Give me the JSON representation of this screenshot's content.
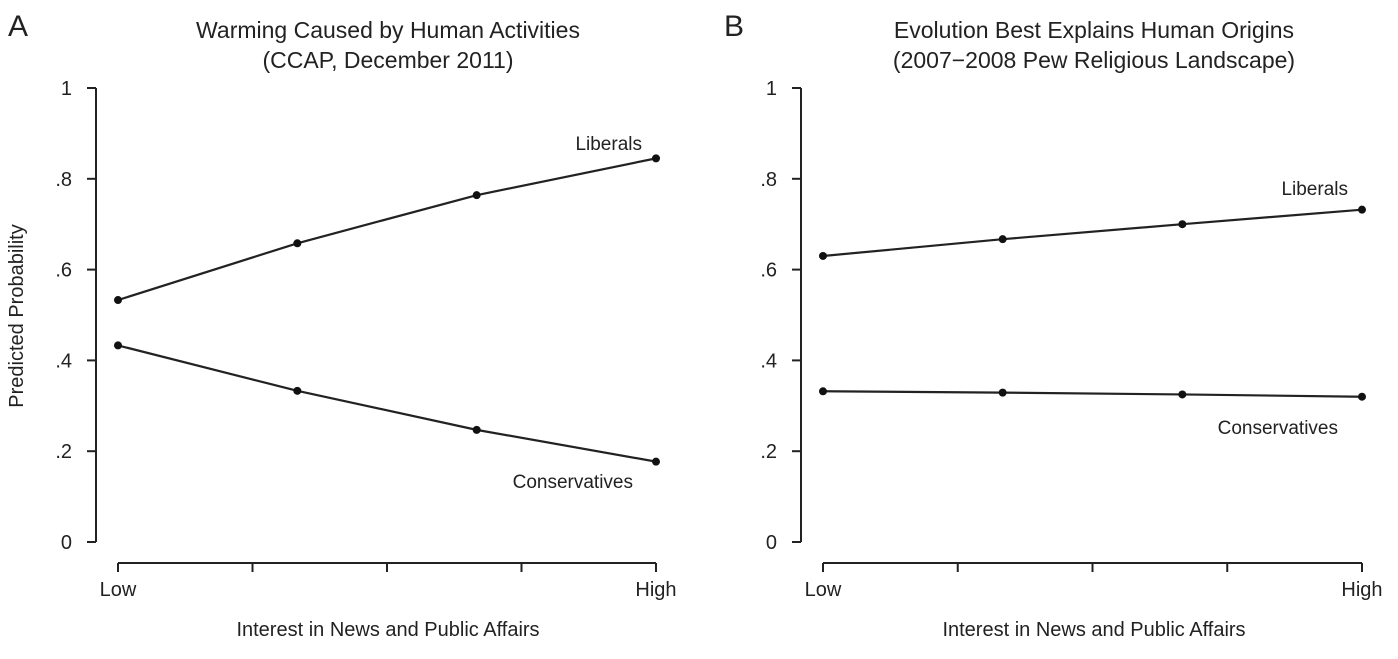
{
  "chart_data": [
    {
      "type": "line",
      "panel": "A",
      "title": "Warming Caused by Human Activities",
      "subtitle": "(CCAP, December 2011)",
      "xlabel": "Interest in News and Public Affairs",
      "ylabel": "Predicted Probability",
      "x_ticks": [
        "Low",
        "",
        "",
        "",
        "High"
      ],
      "x": [
        0,
        1,
        2,
        3
      ],
      "ylim": [
        0,
        1
      ],
      "y_ticks": [
        {
          "value": 0,
          "label": "0"
        },
        {
          "value": 0.2,
          "label": ".2"
        },
        {
          "value": 0.4,
          "label": ".4"
        },
        {
          "value": 0.6,
          "label": ".6"
        },
        {
          "value": 0.8,
          "label": ".8"
        },
        {
          "value": 1,
          "label": "1"
        }
      ],
      "grid": false,
      "series": [
        {
          "name": "Liberals",
          "values": [
            0.533,
            0.658,
            0.764,
            0.845
          ]
        },
        {
          "name": "Conservatives",
          "values": [
            0.433,
            0.333,
            0.247,
            0.177
          ]
        }
      ]
    },
    {
      "type": "line",
      "panel": "B",
      "title": "Evolution Best Explains Human Origins",
      "subtitle": "(2007−2008 Pew Religious Landscape)",
      "xlabel": "Interest in News and Public Affairs",
      "ylabel": "",
      "x_ticks": [
        "Low",
        "",
        "",
        "",
        "High"
      ],
      "x": [
        0,
        1,
        2,
        3
      ],
      "ylim": [
        0,
        1
      ],
      "y_ticks": [
        {
          "value": 0,
          "label": "0"
        },
        {
          "value": 0.2,
          "label": ".2"
        },
        {
          "value": 0.4,
          "label": ".4"
        },
        {
          "value": 0.6,
          "label": ".6"
        },
        {
          "value": 0.8,
          "label": ".8"
        },
        {
          "value": 1,
          "label": "1"
        }
      ],
      "grid": false,
      "series": [
        {
          "name": "Liberals",
          "values": [
            0.63,
            0.667,
            0.7,
            0.732
          ]
        },
        {
          "name": "Conservatives",
          "values": [
            0.332,
            0.329,
            0.325,
            0.32
          ]
        }
      ]
    }
  ]
}
